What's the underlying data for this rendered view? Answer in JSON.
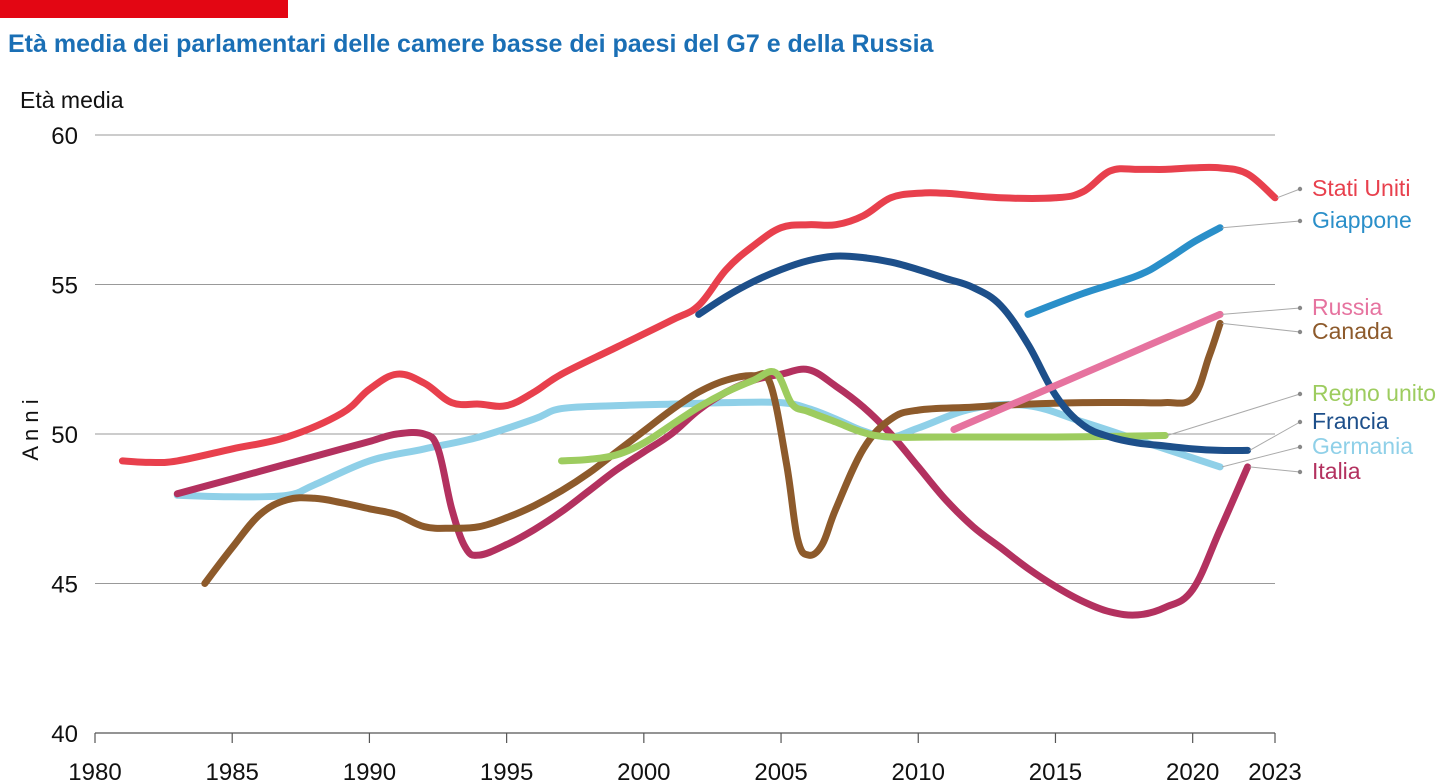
{
  "colors": {
    "accent_bar": "#e30613",
    "title": "#1a6fb5",
    "gridline": "#999999",
    "axis": "#555555",
    "leader": "#aaaaaa"
  },
  "chart_data": {
    "type": "line",
    "title": "Età media dei parlamentari delle camere basse dei paesi del G7 e della Russia",
    "ylabel_top": "Età media",
    "ylabel_side": "A n n i",
    "xlim": [
      1980,
      2023
    ],
    "ylim": [
      40,
      60
    ],
    "x_ticks": [
      1980,
      1985,
      1990,
      1995,
      2000,
      2005,
      2010,
      2015,
      2020,
      2023
    ],
    "y_ticks": [
      40,
      45,
      50,
      55,
      60
    ],
    "grid": true,
    "legend": "right (direct labels)",
    "series": [
      {
        "name": "Stati Uniti",
        "color": "#e8404d",
        "x": [
          1981,
          1982,
          1983,
          1985,
          1987,
          1989,
          1990,
          1991,
          1992,
          1993,
          1994,
          1995,
          1996,
          1997,
          1999,
          2001,
          2002,
          2003,
          2004,
          2005,
          2006,
          2007,
          2008,
          2009,
          2010,
          2011,
          2013,
          2015,
          2016,
          2017,
          2018,
          2019,
          2020,
          2021,
          2022,
          2023
        ],
        "y": [
          49.1,
          49.05,
          49.1,
          49.5,
          49.9,
          50.7,
          51.5,
          52.0,
          51.7,
          51.05,
          51.0,
          50.95,
          51.4,
          52.0,
          52.9,
          53.8,
          54.3,
          55.5,
          56.3,
          56.9,
          57.0,
          57.0,
          57.3,
          57.9,
          58.05,
          58.05,
          57.9,
          57.9,
          58.1,
          58.8,
          58.85,
          58.85,
          58.9,
          58.9,
          58.7,
          57.9
        ]
      },
      {
        "name": "Giappone",
        "color": "#2a8fc9",
        "x": [
          2014,
          2016,
          2018,
          2019,
          2020,
          2021
        ],
        "y": [
          54.0,
          54.7,
          55.3,
          55.8,
          56.4,
          56.9
        ]
      },
      {
        "name": "Russia",
        "color": "#e6739f",
        "x": [
          2011.3,
          2021
        ],
        "y": [
          50.15,
          54.0
        ]
      },
      {
        "name": "Canada",
        "color": "#8d5a2b",
        "x": [
          1984,
          1985,
          1986,
          1987,
          1988,
          1989,
          1990,
          1991,
          1992,
          1993,
          1994,
          1995,
          1996,
          1997,
          1998,
          1999,
          2000,
          2001,
          2002,
          2003,
          2004,
          2004.6,
          2005.2,
          2005.6,
          2006,
          2006.5,
          2007,
          2008,
          2009,
          2010,
          2012,
          2014,
          2016,
          2018,
          2019,
          2020,
          2020.6,
          2021
        ],
        "y": [
          45.0,
          46.2,
          47.3,
          47.8,
          47.85,
          47.7,
          47.5,
          47.3,
          46.9,
          46.85,
          46.9,
          47.2,
          47.6,
          48.1,
          48.7,
          49.4,
          50.1,
          50.8,
          51.4,
          51.8,
          51.95,
          51.7,
          49.0,
          46.5,
          45.95,
          46.3,
          47.5,
          49.5,
          50.5,
          50.8,
          50.9,
          51.0,
          51.05,
          51.05,
          51.05,
          51.2,
          52.6,
          53.7
        ]
      },
      {
        "name": "Regno unito",
        "color": "#9dcc5f",
        "x": [
          1997,
          1998,
          1999,
          2000,
          2001,
          2002,
          2003,
          2004,
          2004.8,
          2005.4,
          2006,
          2007,
          2008,
          2009,
          2011,
          2013,
          2015,
          2017,
          2019
        ],
        "y": [
          49.1,
          49.15,
          49.3,
          49.7,
          50.3,
          50.9,
          51.4,
          51.8,
          52.05,
          51.0,
          50.75,
          50.4,
          50.05,
          49.9,
          49.9,
          49.9,
          49.9,
          49.92,
          49.95
        ]
      },
      {
        "name": "Francia",
        "color": "#1d4f8a",
        "x": [
          2002,
          2003,
          2004,
          2005,
          2006,
          2007,
          2008,
          2009,
          2010,
          2011,
          2012,
          2013,
          2014,
          2015,
          2016,
          2017,
          2018,
          2019,
          2020,
          2021,
          2022
        ],
        "y": [
          54.0,
          54.6,
          55.1,
          55.5,
          55.8,
          55.95,
          55.9,
          55.75,
          55.5,
          55.2,
          54.9,
          54.3,
          53.0,
          51.3,
          50.3,
          49.9,
          49.7,
          49.6,
          49.5,
          49.45,
          49.45
        ]
      },
      {
        "name": "Germania",
        "color": "#8fd0e8",
        "x": [
          1983,
          1985,
          1987,
          1988,
          1990,
          1992,
          1994,
          1996,
          1997,
          1999,
          2001,
          2003,
          2005,
          2006,
          2007,
          2008,
          2009,
          2010,
          2012,
          2014,
          2016,
          2018,
          2020,
          2021
        ],
        "y": [
          47.95,
          47.9,
          47.95,
          48.3,
          49.1,
          49.5,
          49.9,
          50.5,
          50.85,
          50.95,
          51.0,
          51.05,
          51.05,
          50.85,
          50.5,
          50.1,
          49.9,
          50.2,
          50.85,
          50.95,
          50.4,
          49.8,
          49.2,
          48.9
        ]
      },
      {
        "name": "Italia",
        "color": "#b3315f",
        "x": [
          1983,
          1985,
          1987,
          1989,
          1990,
          1991,
          1992,
          1992.5,
          1993,
          1993.5,
          1994,
          1995,
          1996,
          1997,
          1998,
          1999,
          2000,
          2001,
          2002,
          2003,
          2004,
          2005,
          2006,
          2007,
          2008,
          2009,
          2010,
          2011,
          2012,
          2013,
          2014,
          2015,
          2016,
          2017,
          2018,
          2019,
          2020,
          2021,
          2022
        ],
        "y": [
          48.0,
          48.5,
          49.0,
          49.5,
          49.75,
          50.0,
          50.0,
          49.5,
          47.5,
          46.2,
          45.95,
          46.3,
          46.8,
          47.4,
          48.1,
          48.8,
          49.4,
          50.0,
          50.8,
          51.4,
          51.8,
          52.0,
          52.15,
          51.6,
          50.9,
          50.0,
          48.9,
          47.8,
          46.9,
          46.2,
          45.5,
          44.9,
          44.4,
          44.05,
          43.95,
          44.2,
          44.8,
          46.8,
          48.9
        ]
      }
    ]
  }
}
